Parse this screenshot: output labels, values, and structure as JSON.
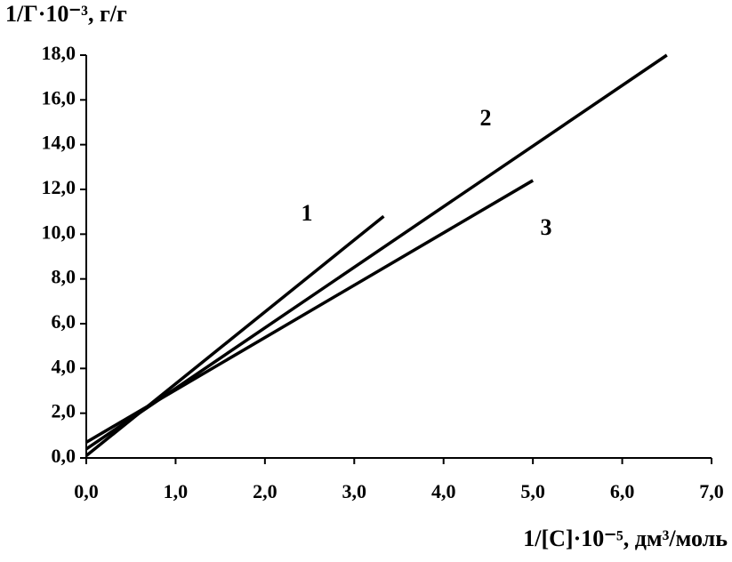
{
  "chart_data": {
    "type": "line",
    "ylabel": "1/Г·10⁻³, г/г",
    "xlabel": "1/[C]·10⁻⁵, дм³/моль",
    "xlim": [
      0,
      7
    ],
    "ylim": [
      0,
      18
    ],
    "xticks": [
      {
        "value": 0,
        "label": "0,0"
      },
      {
        "value": 1,
        "label": "1,0"
      },
      {
        "value": 2,
        "label": "2,0"
      },
      {
        "value": 3,
        "label": "3,0"
      },
      {
        "value": 4,
        "label": "4,0"
      },
      {
        "value": 5,
        "label": "5,0"
      },
      {
        "value": 6,
        "label": "6,0"
      },
      {
        "value": 7,
        "label": "7,0"
      }
    ],
    "yticks": [
      {
        "value": 0,
        "label": "0,0"
      },
      {
        "value": 2,
        "label": "2,0"
      },
      {
        "value": 4,
        "label": "4,0"
      },
      {
        "value": 6,
        "label": "6,0"
      },
      {
        "value": 8,
        "label": "8,0"
      },
      {
        "value": 10,
        "label": "10,0"
      },
      {
        "value": 12,
        "label": "12,0"
      },
      {
        "value": 14,
        "label": "14,0"
      },
      {
        "value": 16,
        "label": "16,0"
      },
      {
        "value": 18,
        "label": "18,0"
      }
    ],
    "grid": false,
    "series": [
      {
        "name": "1",
        "color": "#000000",
        "x": [
          0,
          3.33
        ],
        "values": [
          0.1,
          10.8
        ]
      },
      {
        "name": "2",
        "color": "#000000",
        "x": [
          0,
          6.5
        ],
        "values": [
          0.4,
          18.0
        ]
      },
      {
        "name": "3",
        "color": "#000000",
        "x": [
          0,
          5.0
        ],
        "values": [
          0.7,
          12.4
        ]
      }
    ]
  }
}
